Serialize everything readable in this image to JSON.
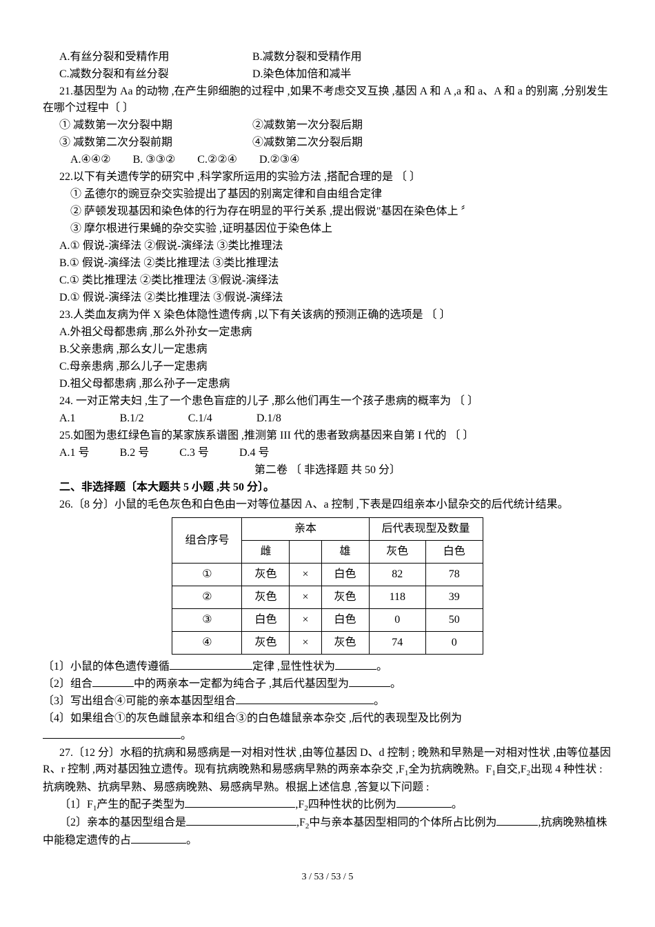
{
  "q20": {
    "A": "A.有丝分裂和受精作用",
    "B": "B.减数分裂和受精作用",
    "C": "C.减数分裂和有丝分裂",
    "D": "D.染色体加倍和减半"
  },
  "q21": {
    "stem": "21.基因型为 Aa 的动物 ,在产生卵细胞的过程中 ,如果不考虑交叉互换 ,基因 A 和 A ,a 和 a、A 和 a 的别离 ,分别发生在哪个过程中〔   〕",
    "opt1": "① 减数第一次分裂中期",
    "opt2": "②减数第一次分裂后期",
    "opt3": "③ 减数第二次分裂前期",
    "opt4": "④减数第二次分裂后期",
    "A": "A.④④②",
    "B": "B. ③③②",
    "C": "C.②②④",
    "D": "D.②③④"
  },
  "q22": {
    "stem": "22.以下有关遗传学的研究中 ,科学家所运用的实验方法 ,搭配合理的是 〔    〕",
    "s1": "① 孟德尔的豌豆杂交实验提出了基因的别离定律和自由组合定律",
    "s2": "② 萨顿发现基因和染色体的行为存在明显的平行关系 ,提出假说\"基因在染色体上 〞",
    "s3": "③ 摩尔根进行果蝇的杂交实验 ,证明基因位于染色体上",
    "A": "A.① 假说-演绎法  ②假说-演绎法  ③类比推理法",
    "B": "B.① 假说-演绎法  ②类比推理法  ③类比推理法",
    "C": "C.① 类比推理法   ②类比推理法  ③假说-演绎法",
    "D": "D.① 假说-演绎法  ②类比推理法  ③假说-演绎法"
  },
  "q23": {
    "stem": "23.人类血友病为伴 X 染色体隐性遗传病 ,以下有关该病的预测正确的选项是 〔    〕",
    "A": "A.外祖父母都患病 ,那么外孙女一定患病",
    "B": "B.父亲患病 ,那么女儿一定患病",
    "C": "C.母亲患病 ,那么儿子一定患病",
    "D": "D.祖父母都患病 ,那么孙子一定患病"
  },
  "q24": {
    "stem": "24. 一对正常夫妇 ,生了一个患色盲症的儿子 ,那么他们再生一个孩子患病的概率为 〔    〕",
    "A": "A.1",
    "B": "B.1/2",
    "C": "C.1/4",
    "D": "D.1/8"
  },
  "q25": {
    "stem": "25.如图为患红绿色盲的某家族系谱图 ,推测第 III 代的患者致病基因来自第 I 代的 〔    〕",
    "A": "A.1 号",
    "B": "B.2 号",
    "C": "C.3 号",
    "D": "D.4 号"
  },
  "section2_title": "第二卷 〔 非选择题 共 50 分〕",
  "part2_title": "二、非选择题〔本大题共 5 小题 ,共 50 分〕。",
  "q26": {
    "stem": "26.〔8 分〕小鼠的毛色灰色和白色由一对等位基因 A、a 控制 ,下表是四组亲本小鼠杂交的后代统计结果。",
    "sub1a": "〔1〕小鼠的体色遗传遵循",
    "sub1b": "定律 ,显性性状为",
    "sub1c": "。",
    "sub2a": "〔2〕组合",
    "sub2b": "中的两亲本一定都为纯合子 ,其后代基因型为",
    "sub2c": "。",
    "sub3a": "〔3〕写出组合④可能的亲本基因型组合",
    "sub3c": "。",
    "sub4a": "〔4〕如果组合①的灰色雌鼠亲本和组合③的白色雄鼠亲本杂交 ,后代的表现型及比例为",
    "sub4c": "。"
  },
  "table": {
    "h1": "组合序号",
    "h2": "亲本",
    "h3": "后代表现型及数量",
    "h_ci": "雌",
    "h_xiong": "雄",
    "h_gray": "灰色",
    "h_white": "白色",
    "rows": [
      {
        "id": "①",
        "ci": "灰色",
        "m": "×",
        "x": "白色",
        "g": "82",
        "w": "78"
      },
      {
        "id": "②",
        "ci": "灰色",
        "m": "×",
        "x": "灰色",
        "g": "118",
        "w": "39"
      },
      {
        "id": "③",
        "ci": "白色",
        "m": "×",
        "x": "白色",
        "g": "0",
        "w": "50"
      },
      {
        "id": "④",
        "ci": "灰色",
        "m": "×",
        "x": "灰色",
        "g": "74",
        "w": "0"
      }
    ]
  },
  "q27": {
    "stem_a": "27.〔12 分〕水稻的抗病和易感病是一对相对性状 ,由等位基因 D、d 控制 ; 晚熟和早熟是一对相对性状 ,由等位基因 R、r 控制 ,两对基因独立遗传。现有抗病晚熟和易感病早熟的两亲本杂交 ,F",
    "stem_b": "全为抗病晚熟。F",
    "stem_c": "自交,F",
    "stem_d": "出现 4 种性状 : 抗病晚熟、抗病早熟、易感病晚熟、易感病早熟。根据上述信息 ,答复以下问题 :",
    "sub1a": "〔1〕F",
    "sub1b": "产生的配子类型为",
    "sub1c": ",F",
    "sub1d": "四种性状的比例为",
    "sub1e": "。",
    "sub2a": "〔2〕亲本的基因型组合是",
    "sub2b": ",F",
    "sub2c": "中与亲本基因型相同的个体所占比例为",
    "sub2d": ",抗病晚熟植株中能稳定遗传的占",
    "sub2e": "。"
  },
  "footer": "3 / 53 / 53 / 5"
}
